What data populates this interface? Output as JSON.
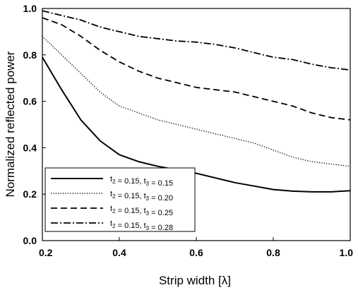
{
  "chart_data": {
    "type": "line",
    "xlabel": "Strip width [λ]",
    "ylabel": "Normalized reflected power",
    "xlim": [
      0.2,
      1.0
    ],
    "ylim": [
      0.0,
      1.0
    ],
    "xticks": [
      "0.2",
      "0.4",
      "0.6",
      "0.8",
      "1.0"
    ],
    "yticks": [
      "0.0",
      "0.2",
      "0.4",
      "0.6",
      "0.8",
      "1.0"
    ],
    "grid": false,
    "legend_position": "bottom-left",
    "series": [
      {
        "name": "t2 = 0.15, t3 = 0.15",
        "legend": {
          "t2": "0.15",
          "t3": "0.15"
        },
        "style": "solid",
        "x": [
          0.2,
          0.25,
          0.3,
          0.35,
          0.4,
          0.45,
          0.5,
          0.55,
          0.6,
          0.65,
          0.7,
          0.75,
          0.8,
          0.85,
          0.9,
          0.95,
          1.0
        ],
        "y": [
          0.79,
          0.65,
          0.52,
          0.43,
          0.37,
          0.34,
          0.32,
          0.305,
          0.29,
          0.27,
          0.25,
          0.235,
          0.22,
          0.213,
          0.21,
          0.21,
          0.215
        ]
      },
      {
        "name": "t2 = 0.15, t3 = 0.20",
        "legend": {
          "t2": "0.15",
          "t3": "0.20"
        },
        "style": "dotted",
        "x": [
          0.2,
          0.25,
          0.3,
          0.35,
          0.4,
          0.45,
          0.5,
          0.55,
          0.6,
          0.65,
          0.7,
          0.75,
          0.8,
          0.85,
          0.9,
          0.95,
          1.0
        ],
        "y": [
          0.88,
          0.8,
          0.72,
          0.64,
          0.58,
          0.55,
          0.52,
          0.5,
          0.48,
          0.46,
          0.44,
          0.42,
          0.39,
          0.36,
          0.34,
          0.33,
          0.32
        ]
      },
      {
        "name": "t2 = 0.15, t3 = 0.25",
        "legend": {
          "t2": "0.15",
          "t3": "0.25"
        },
        "style": "dashed",
        "x": [
          0.2,
          0.25,
          0.3,
          0.35,
          0.4,
          0.45,
          0.5,
          0.55,
          0.6,
          0.65,
          0.7,
          0.75,
          0.8,
          0.85,
          0.9,
          0.95,
          1.0
        ],
        "y": [
          0.96,
          0.93,
          0.88,
          0.82,
          0.77,
          0.73,
          0.7,
          0.68,
          0.66,
          0.65,
          0.64,
          0.62,
          0.6,
          0.58,
          0.55,
          0.53,
          0.52
        ]
      },
      {
        "name": "t2 = 0.15, t3 = 0.28",
        "legend": {
          "t2": "0.15",
          "t3": "0.28"
        },
        "style": "dash-dot",
        "x": [
          0.2,
          0.25,
          0.3,
          0.35,
          0.4,
          0.45,
          0.5,
          0.55,
          0.6,
          0.65,
          0.7,
          0.75,
          0.8,
          0.85,
          0.9,
          0.95,
          1.0
        ],
        "y": [
          0.99,
          0.97,
          0.95,
          0.92,
          0.9,
          0.88,
          0.87,
          0.86,
          0.855,
          0.845,
          0.83,
          0.81,
          0.79,
          0.78,
          0.76,
          0.745,
          0.735
        ]
      }
    ]
  },
  "colors": {
    "line": "#000000",
    "background": "#ffffff"
  }
}
